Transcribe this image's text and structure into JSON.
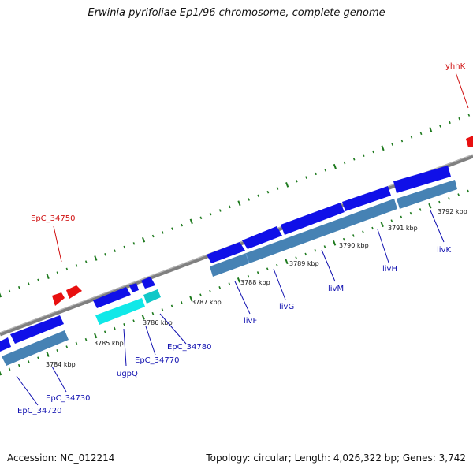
{
  "title": "Erwinia pyrifoliae Ep1/96 chromosome, complete genome",
  "footer": {
    "accession": "Accession: NC_012214",
    "stats": "Topology: circular; Length: 4,026,322 bp; Genes: 3,742"
  },
  "colors": {
    "backbone": "#808080",
    "tick_green": "#1e7a1e",
    "gene_blue": "#1010e8",
    "gene_red": "#e81010",
    "gene_cyan": "#10e8e8",
    "cds_steel": "#4682b4",
    "label_blue": "#1010b0",
    "label_red": "#d01010"
  },
  "ticks": [
    "3784 kbp",
    "3785 kbp",
    "3786 kbp",
    "3787 kbp",
    "3788 kbp",
    "3789 kbp",
    "3790 kbp",
    "3791 kbp",
    "3792 kbp"
  ],
  "gene_labels": {
    "blue": [
      "EpC_34720",
      "EpC_34730",
      "ugpQ",
      "EpC_34770",
      "EpC_34780",
      "livF",
      "livG",
      "livM",
      "livH",
      "livK"
    ],
    "red": [
      "EpC_34750",
      "yhhK"
    ]
  }
}
